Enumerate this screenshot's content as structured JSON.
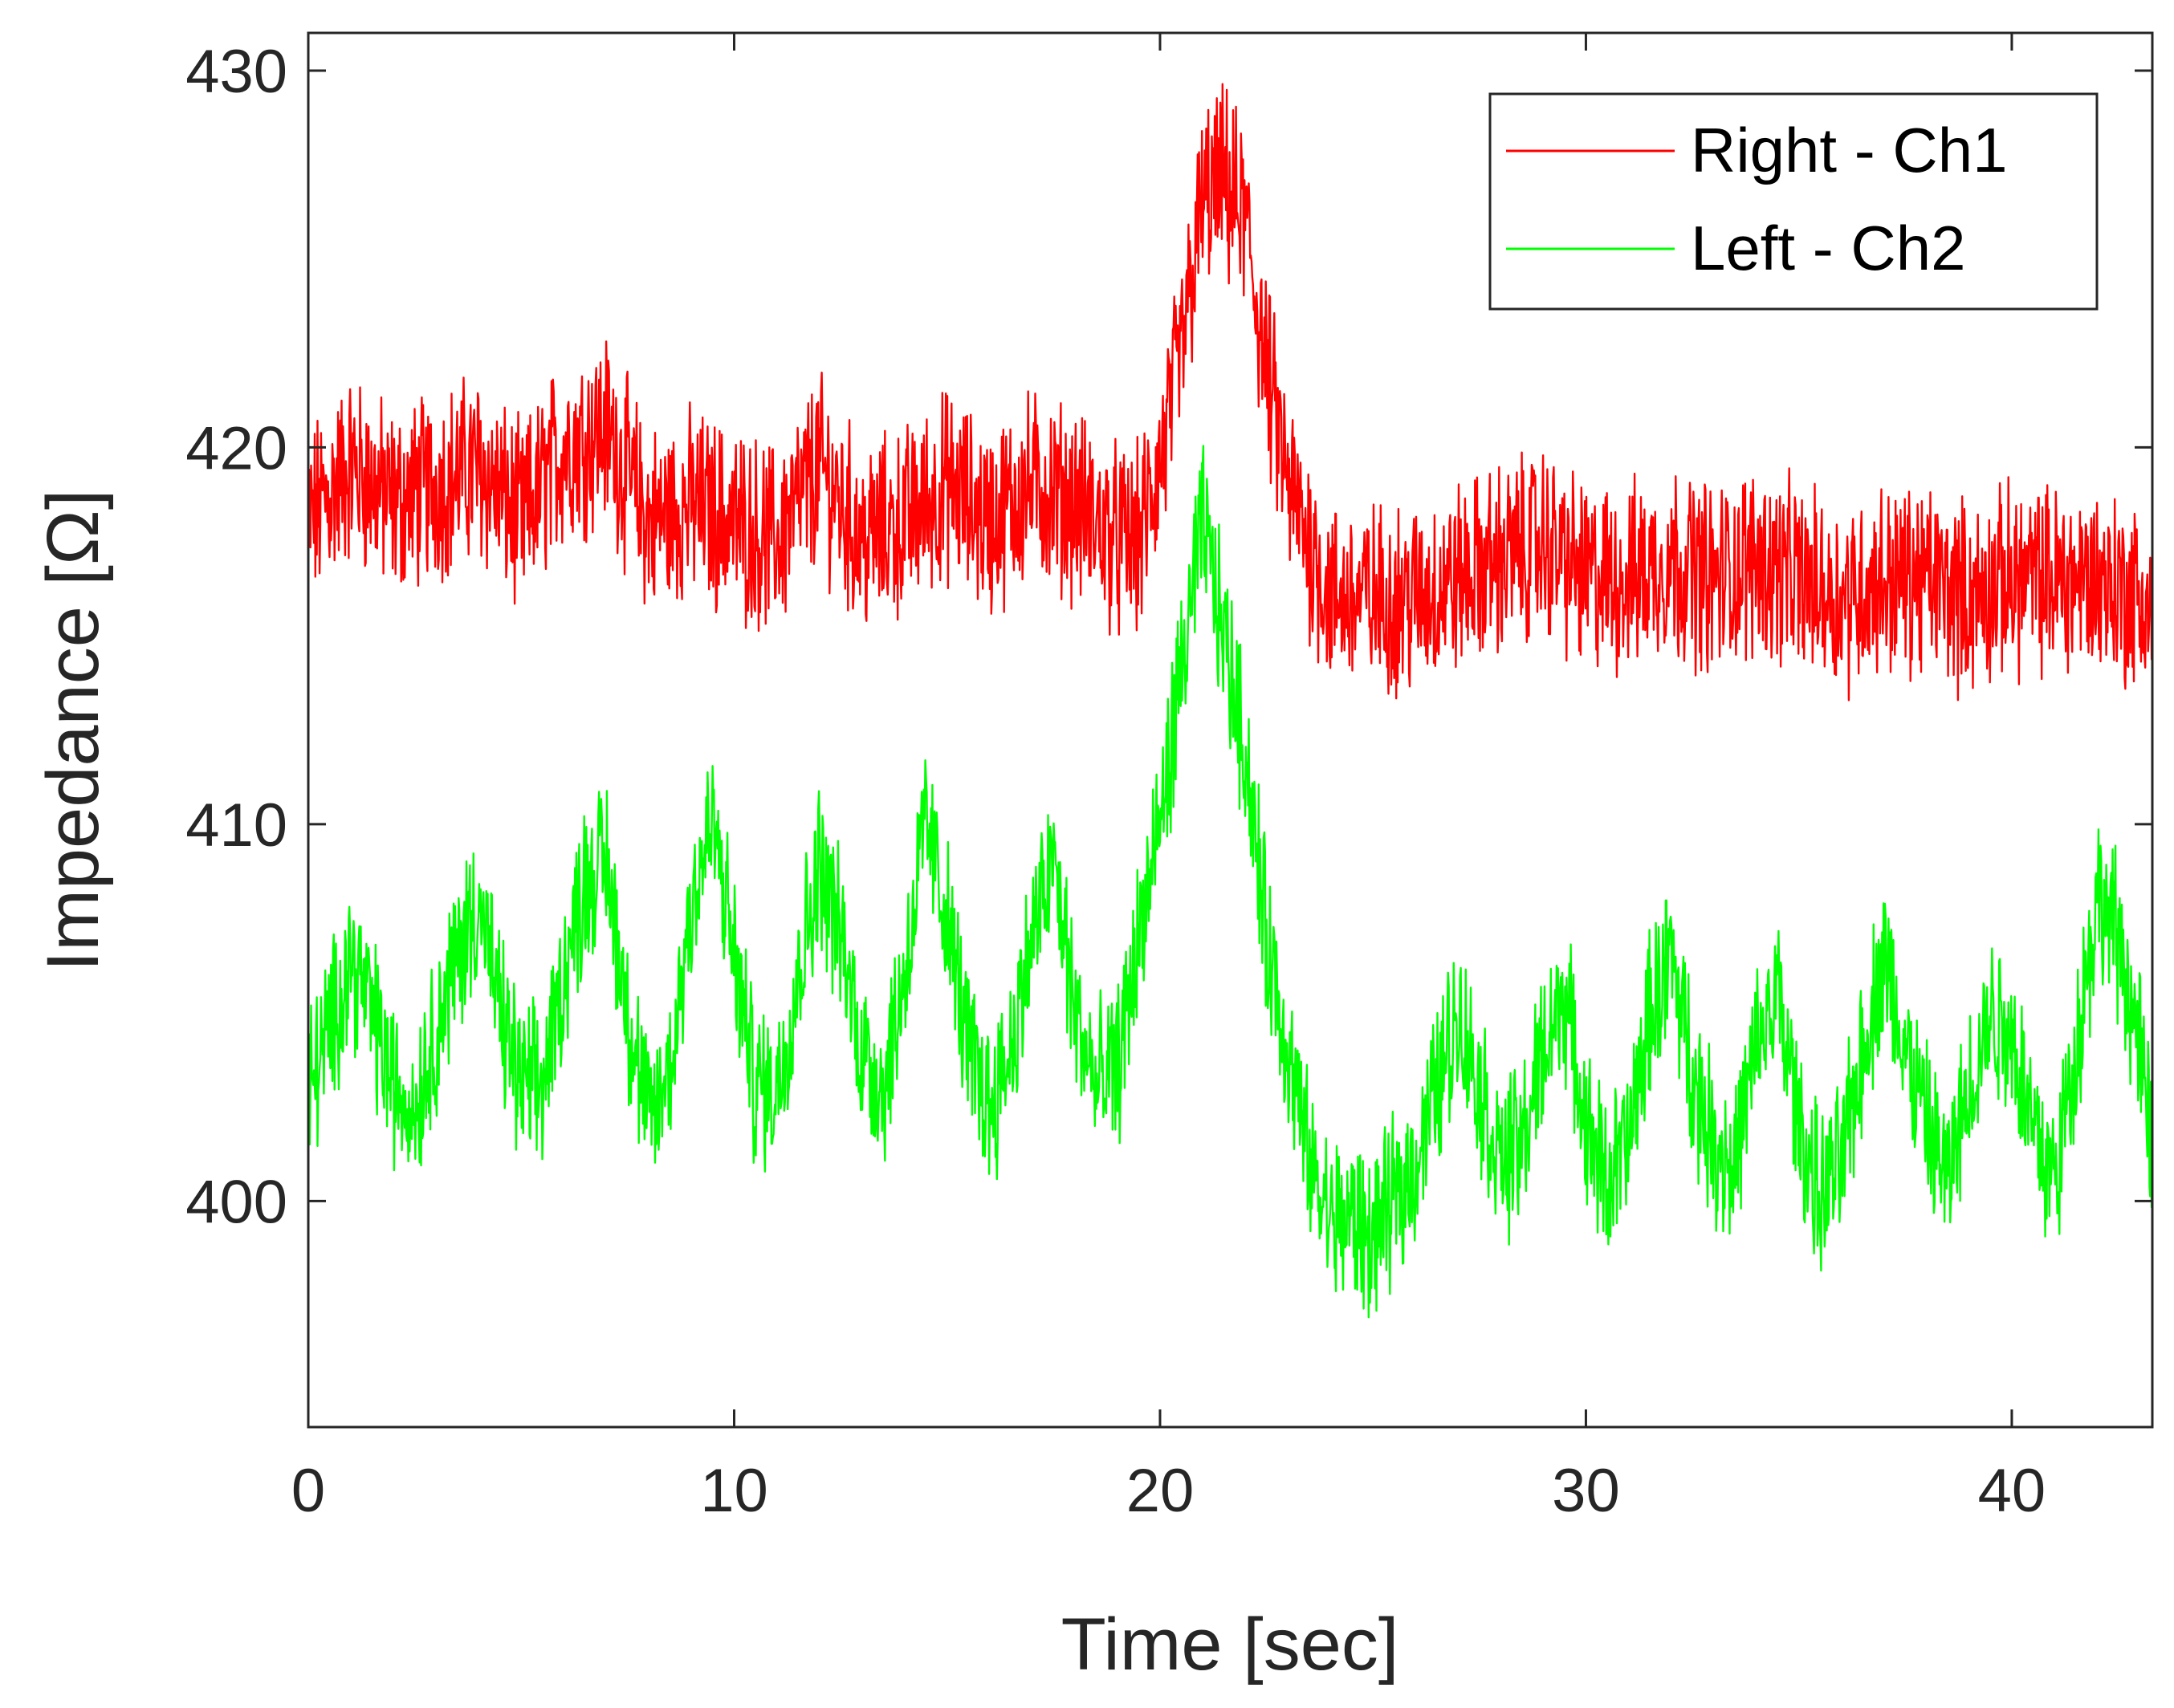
{
  "chart_data": {
    "type": "line",
    "title": "",
    "xlabel": "Time [sec]",
    "ylabel": "Impedance [Ω]",
    "xlim": [
      0,
      43.3
    ],
    "ylim": [
      394,
      431
    ],
    "x_ticks": [
      0,
      10,
      20,
      30,
      40
    ],
    "x_tick_labels": [
      "0",
      "10",
      "20",
      "30",
      "40"
    ],
    "y_ticks": [
      400,
      410,
      420,
      430
    ],
    "y_tick_labels": [
      "400",
      "410",
      "420",
      "430"
    ],
    "grid": false,
    "legend_position": "top-right",
    "series": [
      {
        "name": "Right - Ch1",
        "color": "#ff0000",
        "x": [
          0,
          1,
          2,
          3,
          4,
          5,
          6,
          7,
          8,
          9,
          10,
          11,
          12,
          13,
          14,
          15,
          16,
          17,
          18,
          19,
          19.5,
          20,
          20.5,
          21,
          21.5,
          22,
          22.5,
          23,
          23.5,
          24,
          25,
          26,
          27,
          28,
          29,
          30,
          31,
          32,
          33,
          34,
          35,
          36,
          37,
          38,
          39,
          40,
          41,
          42,
          43,
          43.3
        ],
        "values": [
          418,
          419.5,
          418.5,
          419,
          419.5,
          418,
          420,
          420.5,
          418,
          418.5,
          418,
          417.5,
          419.5,
          417.5,
          418,
          419,
          418,
          419,
          418.5,
          417.5,
          417.5,
          419.5,
          422.5,
          426.5,
          427,
          426,
          422,
          419,
          417.5,
          416,
          416,
          416,
          416.5,
          417,
          417.5,
          416.5,
          416.5,
          417,
          416.5,
          417,
          416.5,
          416,
          416.5,
          416.5,
          416,
          416.5,
          416.5,
          416.5,
          416,
          415.5
        ]
      },
      {
        "name": "Left - Ch2",
        "color": "#00ff00",
        "x": [
          0,
          0.5,
          1,
          1.5,
          2,
          2.5,
          3,
          3.5,
          4,
          4.5,
          5,
          5.5,
          6,
          6.5,
          7,
          7.5,
          8,
          8.5,
          9,
          9.5,
          10,
          10.5,
          11,
          11.5,
          12,
          12.5,
          13,
          13.5,
          14,
          14.5,
          15,
          15.5,
          16,
          16.5,
          17,
          17.5,
          18,
          18.5,
          19,
          19.5,
          20,
          20.5,
          21,
          21.5,
          22,
          22.5,
          23,
          23.5,
          24,
          24.5,
          25,
          25.5,
          26,
          26.5,
          27,
          27.5,
          28,
          28.5,
          29,
          29.5,
          30,
          30.5,
          31,
          31.5,
          32,
          32.5,
          33,
          33.5,
          34,
          34.5,
          35,
          35.5,
          36,
          36.5,
          37,
          37.5,
          38,
          38.5,
          39,
          39.5,
          40,
          40.5,
          41,
          41.5,
          42,
          42.5,
          43,
          43.3
        ],
        "values": [
          403,
          404.5,
          406.5,
          405,
          403,
          402.5,
          404.5,
          406.5,
          408,
          405,
          403,
          403,
          406,
          408.5,
          409,
          405,
          402,
          403.5,
          408,
          410,
          406.5,
          403,
          403,
          406,
          409,
          407,
          404,
          403,
          406,
          410,
          407.5,
          404,
          402.5,
          404,
          407,
          409,
          405,
          403,
          403.5,
          407,
          410,
          414,
          418,
          415,
          412,
          407,
          404,
          401,
          399.5,
          399.5,
          399,
          400,
          401,
          403,
          405,
          403,
          401,
          401.5,
          404,
          405.5,
          402,
          400.5,
          401.5,
          405,
          406.5,
          403.5,
          401.5,
          401,
          404,
          405.5,
          402,
          400,
          401,
          404,
          406.5,
          404,
          402,
          400.5,
          403,
          405,
          404.5,
          402,
          400.5,
          404,
          408,
          407,
          404,
          401
        ]
      }
    ]
  }
}
